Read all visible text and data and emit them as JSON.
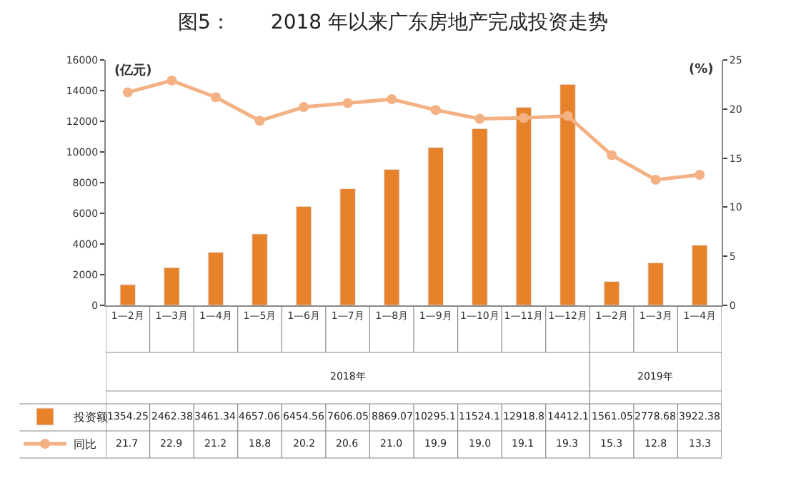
{
  "chart_data": {
    "type": "bar",
    "title": "图5：　　2018 年以来广东房地产完成投资走势",
    "ylabel": "(亿元)",
    "y2label": "(%)",
    "categories": [
      "1—2月",
      "1—3月",
      "1—4月",
      "1—5月",
      "1—6月",
      "1—7月",
      "1—8月",
      "1—9月",
      "1—10月",
      "1—11月",
      "1—12月",
      "1—2月",
      "1—3月",
      "1—4月"
    ],
    "series": [
      {
        "name": "投资额",
        "color": "#e8822a",
        "values": [
          1354.25,
          2462.38,
          3461.34,
          4657.06,
          6454.56,
          7606.05,
          8869.07,
          10295.1,
          11524.1,
          12918.8,
          14412.1,
          1561.05,
          2778.68,
          3922.38
        ]
      },
      {
        "name": "同比",
        "type": "line",
        "axis": "y2",
        "color": "#f4b183",
        "marker": "circle",
        "values": [
          21.7,
          22.9,
          21.2,
          18.8,
          20.2,
          20.6,
          21.0,
          19.9,
          19.0,
          19.1,
          19.3,
          15.3,
          12.8,
          13.3
        ],
        "value_labels": [
          "21.7",
          "22.9",
          "21.2",
          "18.8",
          "20.2",
          "20.6",
          "21.0",
          "19.9",
          "19.0",
          "19.1",
          "19.3",
          "15.3",
          "12.8",
          "13.3"
        ]
      }
    ],
    "annotations": [
      "2018年",
      "2019年"
    ],
    "ylim": [
      0,
      16000
    ],
    "yticks": [
      0,
      2000,
      4000,
      6000,
      8000,
      10000,
      12000,
      14000,
      16000
    ],
    "y2lim": [
      0,
      25
    ],
    "y2ticks": [
      0,
      5,
      10,
      15,
      20,
      25
    ],
    "data_labels": true,
    "legend": "bottom left"
  }
}
